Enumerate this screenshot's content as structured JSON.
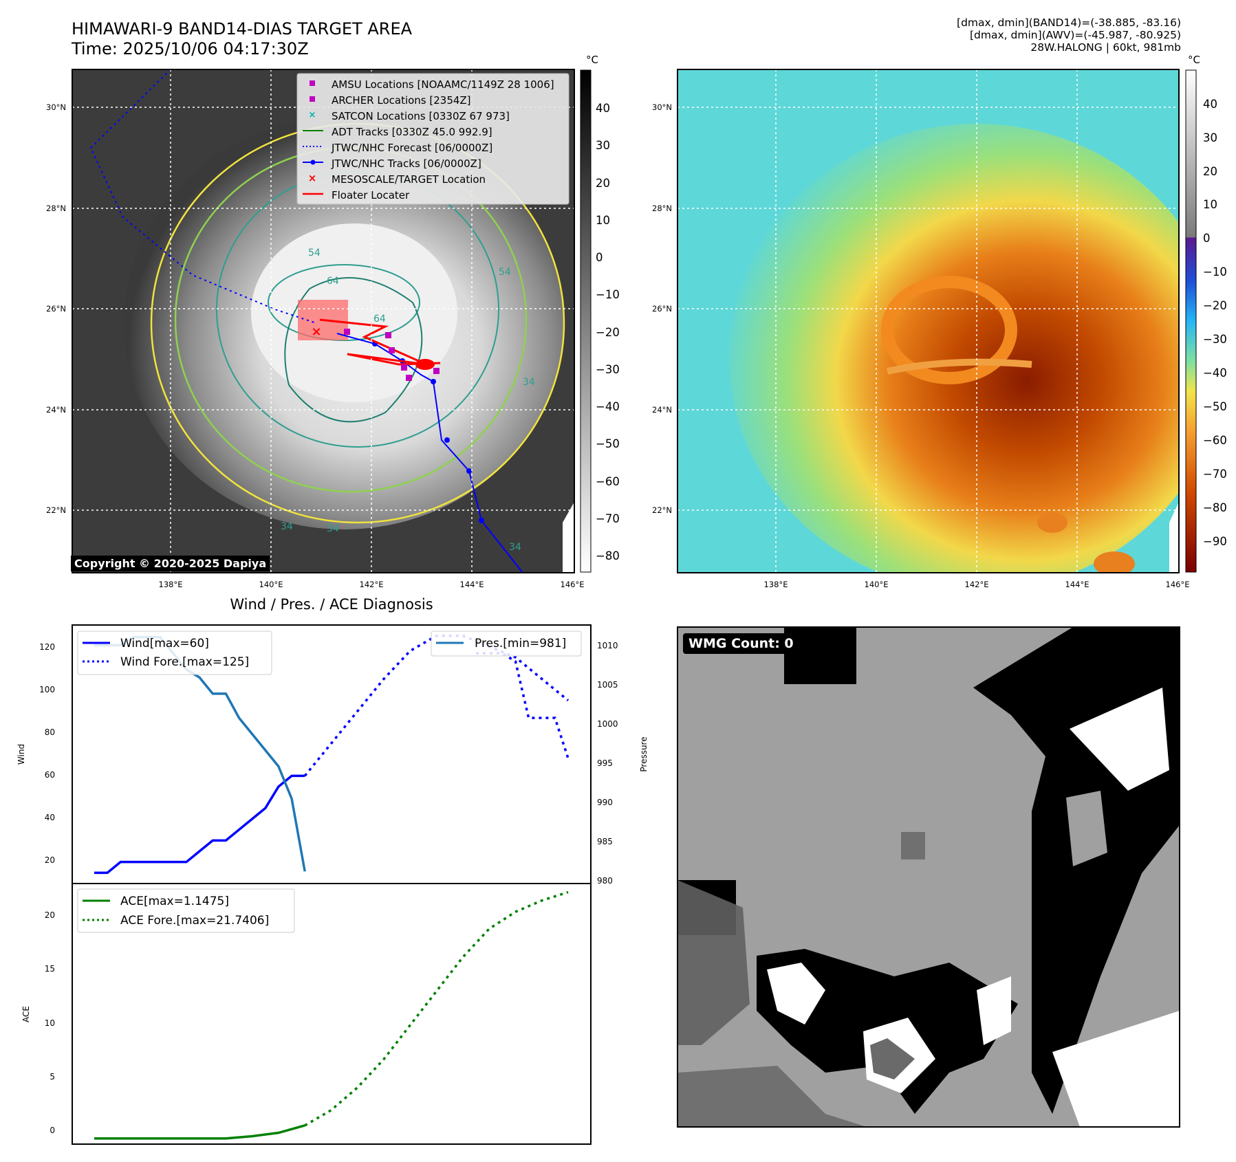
{
  "header": {
    "title_line1": "HIMAWARI-9 BAND14-DIAS TARGET AREA",
    "title_line2": "Time: 2025/10/06 04:17:30Z",
    "stats_line1": "[dmax, dmin](BAND14)=(-38.885, -83.16)",
    "stats_line2": "[dmax, dmin](AWV)=(-45.987, -80.925)",
    "stats_line3": "28W.HALONG | 60kt, 981mb"
  },
  "maps": {
    "lat_labels": [
      "30°N",
      "28°N",
      "26°N",
      "24°N",
      "22°N"
    ],
    "lon_labels": [
      "138°E",
      "140°E",
      "142°E",
      "144°E",
      "146°E"
    ],
    "copyright": "Copyright © 2020-2025 Dapiya",
    "colorbar_unit": "°C",
    "left_colorbar_ticks": [
      "40",
      "30",
      "20",
      "10",
      "0",
      "−10",
      "−20",
      "−30",
      "−40",
      "−50",
      "−60",
      "−70",
      "−80"
    ],
    "right_colorbar_ticks": [
      "40",
      "30",
      "20",
      "10",
      "0",
      "−10",
      "−20",
      "−30",
      "−40",
      "−50",
      "−60",
      "−70",
      "−80",
      "−90"
    ],
    "contour_labels": [
      "54",
      "64",
      "64",
      "54",
      "34",
      "34",
      "34",
      "34"
    ],
    "legend": [
      {
        "label": "AMSU Locations [NOAAMC/1149Z 28 1006]",
        "color": "#c000c0",
        "marker": "square"
      },
      {
        "label": "ARCHER Locations [2354Z]",
        "color": "#c000c0",
        "marker": "square"
      },
      {
        "label": "SATCON Locations [0330Z 67 973]",
        "color": "#00b0b0",
        "marker": "x"
      },
      {
        "label": "ADT Tracks [0330Z 45.0 992.9]",
        "color": "#008000",
        "marker": "line"
      },
      {
        "label": "JTWC/NHC Forecast [06/0000Z]",
        "color": "#0000ff",
        "marker": "dotted"
      },
      {
        "label": "JTWC/NHC Tracks [06/0000Z]",
        "color": "#0000ff",
        "marker": "dotline"
      },
      {
        "label": "MESOSCALE/TARGET Location",
        "color": "#ff0000",
        "marker": "x"
      },
      {
        "label": "Floater Locater",
        "color": "#ff0000",
        "marker": "line"
      }
    ]
  },
  "diagnosis": {
    "title": "Wind / Pres. / ACE Diagnosis",
    "wind_axis_label": "Wind",
    "pressure_axis_label": "Pressure",
    "ace_axis_label": "ACE",
    "wind_ticks": [
      "120",
      "100",
      "80",
      "60",
      "40",
      "20"
    ],
    "pressure_ticks": [
      "1010",
      "1005",
      "1000",
      "995",
      "990",
      "985",
      "980"
    ],
    "ace_ticks": [
      "20",
      "15",
      "10",
      "5",
      "0"
    ],
    "legend_wind": "Wind[max=60]",
    "legend_wind_fore": "Wind Fore.[max=125]",
    "legend_pres": "Pres.[min=981]",
    "legend_ace": "ACE[max=1.1475]",
    "legend_ace_fore": "ACE Fore.[max=21.7406]"
  },
  "wmg": {
    "label": "WMG Count: 0"
  },
  "colors": {
    "wind": "#0000ff",
    "pressure": "#1f77b4",
    "ace": "#008000"
  },
  "chart_data": [
    {
      "type": "line",
      "title": "Wind / Pres. / ACE Diagnosis",
      "ylabel": "Wind",
      "ylim": [
        10,
        130
      ],
      "series": [
        {
          "name": "Wind[max=60]",
          "x": [
            0,
            1,
            2,
            3,
            4,
            5,
            6,
            7,
            8,
            9,
            10,
            11,
            12,
            13,
            14,
            15,
            16
          ],
          "values": [
            15,
            15,
            20,
            20,
            20,
            20,
            20,
            20,
            25,
            30,
            30,
            35,
            40,
            45,
            55,
            60,
            60
          ]
        },
        {
          "name": "Wind Fore.[max=125]",
          "x": [
            16,
            18,
            20,
            22,
            24,
            26,
            28,
            30,
            32,
            34,
            36
          ],
          "values": [
            60,
            75,
            90,
            105,
            118,
            125,
            125,
            120,
            115,
            105,
            95
          ]
        }
      ]
    },
    {
      "type": "line",
      "ylabel": "Pressure",
      "ylim": [
        979.5,
        1011.5
      ],
      "series": [
        {
          "name": "Pres.[min=981]",
          "x": [
            0,
            2,
            3,
            4,
            5,
            6,
            7,
            8,
            9,
            10,
            11,
            12,
            13,
            14,
            15,
            16
          ],
          "values": [
            1009,
            1009,
            1010,
            1010,
            1010,
            1008,
            1006,
            1005,
            1003,
            1003,
            1000,
            998,
            996,
            994,
            990,
            981
          ]
        },
        {
          "x": [
            29,
            30,
            31,
            32,
            33,
            34,
            35,
            36
          ],
          "values": [
            1008,
            1008,
            1008,
            1007,
            1000,
            1000,
            1000,
            995
          ]
        }
      ]
    },
    {
      "type": "line",
      "ylabel": "ACE",
      "ylim": [
        -0.5,
        22.5
      ],
      "series": [
        {
          "name": "ACE[max=1.1475]",
          "x": [
            0,
            2,
            4,
            6,
            8,
            10,
            12,
            14,
            16
          ],
          "values": [
            0,
            0,
            0,
            0,
            0,
            0,
            0.2,
            0.5,
            1.1475
          ]
        },
        {
          "name": "ACE Fore.[max=21.7406]",
          "x": [
            16,
            18,
            20,
            22,
            24,
            26,
            28,
            30,
            32,
            34,
            36
          ],
          "values": [
            1.1475,
            2.5,
            4.5,
            7,
            10,
            13,
            16,
            18.5,
            20,
            21,
            21.7406
          ]
        }
      ]
    }
  ]
}
